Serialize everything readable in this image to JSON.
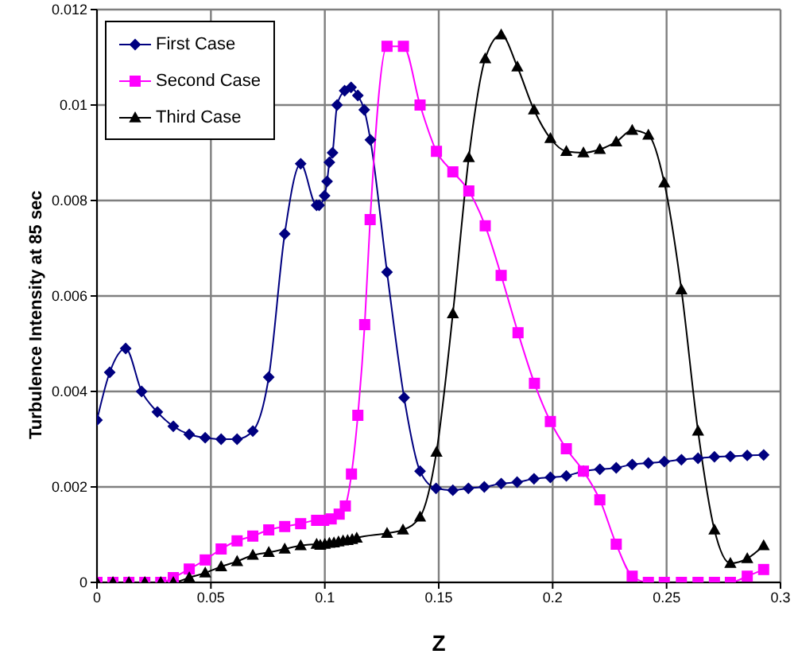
{
  "chart_data": {
    "type": "line",
    "xlabel": "Z",
    "ylabel": "Turbulence Intensity at 85 sec",
    "xlim": [
      0,
      0.3
    ],
    "xticks": [
      0,
      0.05,
      0.1,
      0.15,
      0.2,
      0.25,
      0.3
    ],
    "ylim": [
      0,
      0.012
    ],
    "yticks": [
      0,
      0.002,
      0.004,
      0.006,
      0.008,
      0.01,
      0.012
    ],
    "grid": true,
    "legend": "top left",
    "line_style": "solid",
    "series": [
      {
        "name": "First Case",
        "color": "#000080",
        "marker": "diamond",
        "x": [
          0,
          0.0056,
          0.0126,
          0.0196,
          0.0265,
          0.0335,
          0.0405,
          0.0475,
          0.0545,
          0.0615,
          0.0684,
          0.0754,
          0.0824,
          0.0894,
          0.0964,
          0.0975,
          0.0999,
          0.101,
          0.102,
          0.1034,
          0.1054,
          0.1087,
          0.1115,
          0.1145,
          0.1173,
          0.12,
          0.1273,
          0.1348,
          0.1418,
          0.1488,
          0.1562,
          0.163,
          0.17,
          0.1774,
          0.1844,
          0.1918,
          0.199,
          0.206,
          0.2135,
          0.2207,
          0.2279,
          0.2349,
          0.242,
          0.249,
          0.2565,
          0.2638,
          0.271,
          0.278,
          0.2854,
          0.2926
        ],
        "values": [
          0.0034,
          0.0044,
          0.0049,
          0.004,
          0.00357,
          0.00327,
          0.0031,
          0.00303,
          0.003,
          0.003,
          0.00317,
          0.0043,
          0.0073,
          0.00877,
          0.0079,
          0.0079,
          0.0081,
          0.0084,
          0.0088,
          0.009,
          0.01,
          0.0103,
          0.01037,
          0.0102,
          0.0099,
          0.00927,
          0.0065,
          0.00387,
          0.00233,
          0.00197,
          0.00193,
          0.00197,
          0.002,
          0.00207,
          0.0021,
          0.00217,
          0.0022,
          0.00223,
          0.00233,
          0.00237,
          0.0024,
          0.00247,
          0.0025,
          0.00253,
          0.00257,
          0.0026,
          0.00263,
          0.00264,
          0.00266,
          0.00267
        ]
      },
      {
        "name": "Second Case",
        "color": "#ff00ff",
        "marker": "square",
        "x": [
          0,
          0.007,
          0.014,
          0.021,
          0.028,
          0.0335,
          0.0405,
          0.0475,
          0.0545,
          0.0615,
          0.0684,
          0.0754,
          0.0824,
          0.0894,
          0.0964,
          0.0995,
          0.1028,
          0.1063,
          0.109,
          0.1117,
          0.1145,
          0.1175,
          0.1199,
          0.1273,
          0.1345,
          0.1418,
          0.149,
          0.1562,
          0.1632,
          0.1704,
          0.1774,
          0.1848,
          0.192,
          0.199,
          0.206,
          0.2135,
          0.2207,
          0.2279,
          0.2349,
          0.242,
          0.249,
          0.2565,
          0.2638,
          0.271,
          0.278,
          0.2854,
          0.2926
        ],
        "values": [
          0,
          0,
          0,
          0,
          0,
          0.0001,
          0.00028,
          0.00047,
          0.0007,
          0.00087,
          0.00097,
          0.0011,
          0.00117,
          0.00123,
          0.0013,
          0.0013,
          0.00133,
          0.00143,
          0.0016,
          0.00227,
          0.0035,
          0.0054,
          0.0076,
          0.01123,
          0.01123,
          0.01,
          0.00903,
          0.0086,
          0.0082,
          0.00747,
          0.00643,
          0.00523,
          0.00417,
          0.00337,
          0.0028,
          0.00233,
          0.00173,
          0.0008,
          0.00013,
          0,
          0,
          0,
          0,
          0,
          0,
          0.00013,
          0.00027
        ]
      },
      {
        "name": "Third Case",
        "color": "#000000",
        "marker": "triangle",
        "x": [
          0,
          0.007,
          0.014,
          0.021,
          0.028,
          0.0335,
          0.0405,
          0.0475,
          0.0545,
          0.0615,
          0.0684,
          0.0754,
          0.0824,
          0.0894,
          0.0964,
          0.098,
          0.1,
          0.102,
          0.104,
          0.106,
          0.108,
          0.11,
          0.112,
          0.114,
          0.1273,
          0.1343,
          0.1418,
          0.149,
          0.1562,
          0.1632,
          0.1704,
          0.1774,
          0.1845,
          0.1918,
          0.199,
          0.206,
          0.2135,
          0.2207,
          0.2279,
          0.2349,
          0.242,
          0.249,
          0.2565,
          0.2638,
          0.271,
          0.278,
          0.2854,
          0.2926
        ],
        "values": [
          0,
          0,
          0,
          0,
          0,
          0,
          0.0001,
          0.0002,
          0.00033,
          0.00044,
          0.00057,
          0.00063,
          0.0007,
          0.00077,
          0.0008,
          0.00078,
          0.0008,
          0.00082,
          0.00083,
          0.00085,
          0.00087,
          0.00088,
          0.0009,
          0.00093,
          0.00103,
          0.0011,
          0.00137,
          0.00273,
          0.00563,
          0.0089,
          0.01097,
          0.01147,
          0.0108,
          0.0099,
          0.0093,
          0.00903,
          0.009,
          0.00907,
          0.00923,
          0.00947,
          0.00937,
          0.00837,
          0.00613,
          0.00317,
          0.0011,
          0.0004,
          0.0005,
          0.00077
        ]
      }
    ]
  }
}
